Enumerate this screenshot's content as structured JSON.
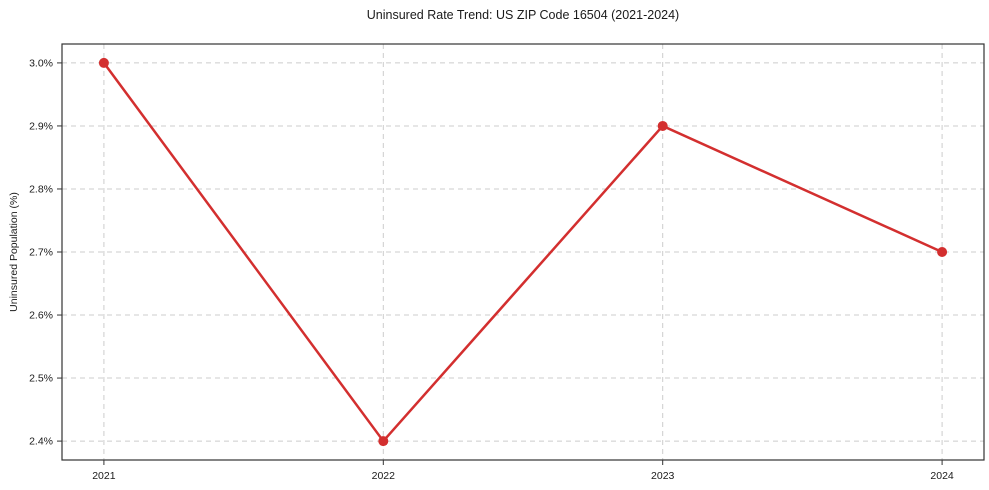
{
  "chart_data": {
    "type": "line",
    "title": "Uninsured Rate Trend: US ZIP Code 16504 (2021-2024)",
    "xlabel": "",
    "ylabel": "Uninsured Population (%)",
    "x": [
      2021,
      2022,
      2023,
      2024
    ],
    "x_tick_labels": [
      "2021",
      "2022",
      "2023",
      "2024"
    ],
    "series": [
      {
        "name": "Uninsured Population (%)",
        "values": [
          3.0,
          2.4,
          2.9,
          2.7
        ]
      }
    ],
    "y_ticks": [
      2.4,
      2.5,
      2.6,
      2.7,
      2.8,
      2.9,
      3.0
    ],
    "y_tick_labels": [
      "2.4%",
      "2.5%",
      "2.6%",
      "2.7%",
      "2.8%",
      "2.9%",
      "3.0%"
    ],
    "ylim": [
      2.37,
      3.03
    ],
    "xlim": [
      2020.85,
      2024.15
    ],
    "grid": true,
    "legend": "none",
    "colors": {
      "line": "#d32f2f",
      "marker": "#d32f2f",
      "grid": "#cccccc",
      "frame": "#333333",
      "tick": "#333333",
      "text": "#1a1a1a",
      "background": "#ffffff"
    }
  }
}
